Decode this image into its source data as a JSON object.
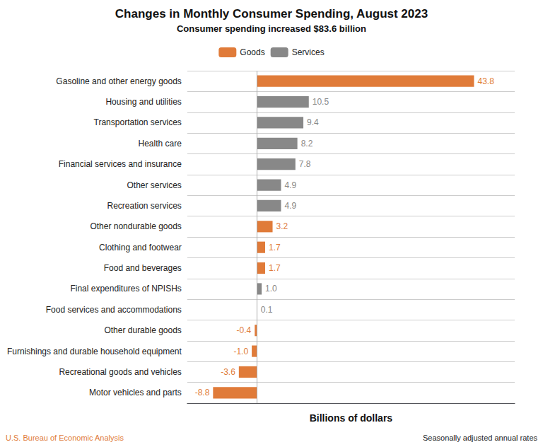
{
  "chart_data": {
    "type": "bar",
    "orientation": "horizontal",
    "title": "Changes in Monthly Consumer Spending, August 2023",
    "subtitle": "Consumer spending increased $83.6 billion",
    "xlabel": "Billions of dollars",
    "annotations": [
      "U.S. Bureau of Economic Analysis",
      "Seasonally adjusted annual rates"
    ],
    "categories": [
      "Gasoline and other energy goods",
      "Housing and utilities",
      "Transportation services",
      "Health care",
      "Financial services and insurance",
      "Other services",
      "Recreation services",
      "Other nondurable goods",
      "Clothing and footwear",
      "Food and beverages",
      "Final expenditures of NPISHs",
      "Food services and accommodations",
      "Other durable goods",
      "Furnishings and durable household equipment",
      "Recreational goods and vehicles",
      "Motor vehicles and parts"
    ],
    "series": [
      {
        "name": "Goods",
        "color": "#E07B39",
        "values": [
          43.8,
          null,
          null,
          null,
          null,
          null,
          null,
          3.2,
          1.7,
          1.7,
          null,
          null,
          -0.4,
          -1.0,
          -3.6,
          -8.8
        ],
        "value_labels": [
          "43.8",
          null,
          null,
          null,
          null,
          null,
          null,
          "3.2",
          "1.7",
          "1.7",
          null,
          null,
          "-0.4",
          "-1.0",
          "-3.6",
          "-8.8"
        ]
      },
      {
        "name": "Services",
        "color": "#888888",
        "values": [
          null,
          10.5,
          9.4,
          8.2,
          7.8,
          4.9,
          4.9,
          null,
          null,
          null,
          1.0,
          0.1,
          null,
          null,
          null,
          null
        ],
        "value_labels": [
          null,
          "10.5",
          "9.4",
          "8.2",
          "7.8",
          "4.9",
          "4.9",
          null,
          null,
          null,
          "1.0",
          "0.1",
          null,
          null,
          null,
          null
        ]
      }
    ],
    "xlim": [
      -14,
      52
    ],
    "tick_labels": "y",
    "grid": true,
    "legend": "top",
    "data_labels": true
  }
}
